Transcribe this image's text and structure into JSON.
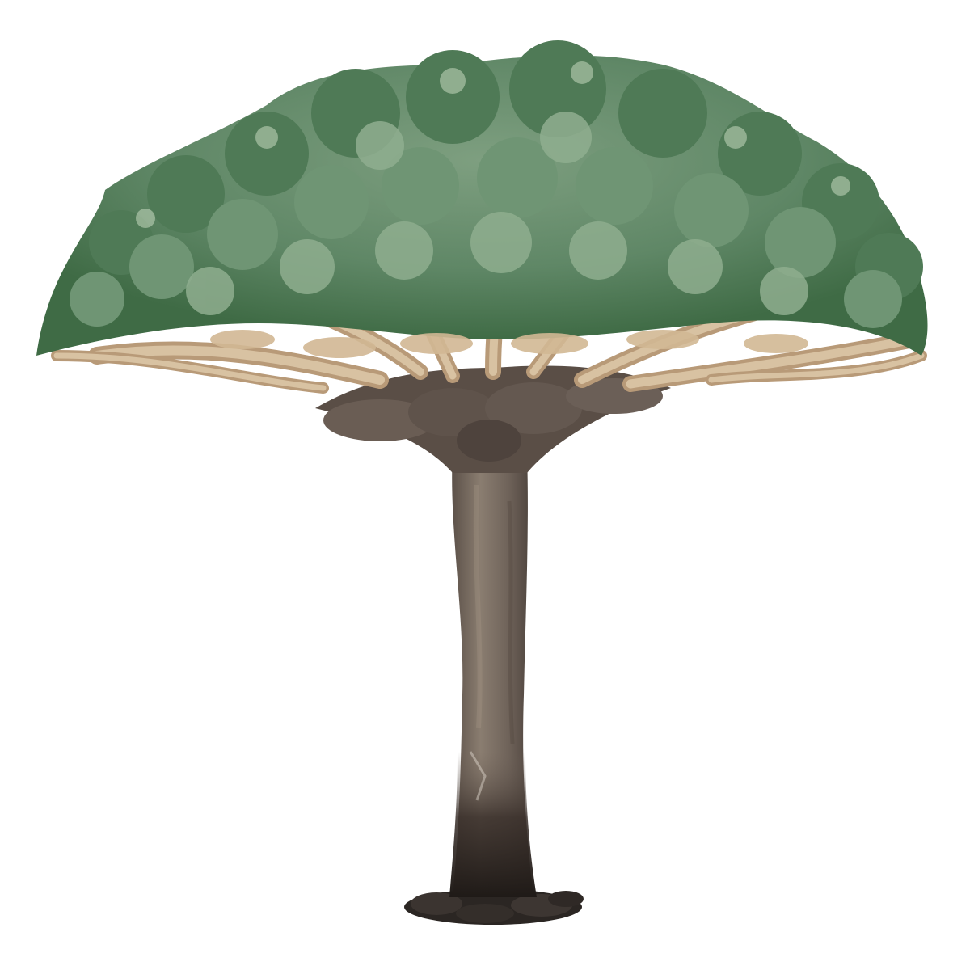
{
  "image": {
    "subject": "dragon-tree",
    "background_color": "#ffffff"
  },
  "colors": {
    "foliage_dark": "#3f6b45",
    "foliage_mid": "#5f8766",
    "foliage_light": "#8fae8f",
    "foliage_highlight": "#c7d9c0",
    "branch_light": "#d8c2a2",
    "branch_mid": "#b89a78",
    "branch_shadow": "#8a6f55",
    "trunk_light": "#8a7d70",
    "trunk_mid": "#6e6259",
    "trunk_dark": "#3a302b",
    "roots_dark": "#2b2623"
  }
}
